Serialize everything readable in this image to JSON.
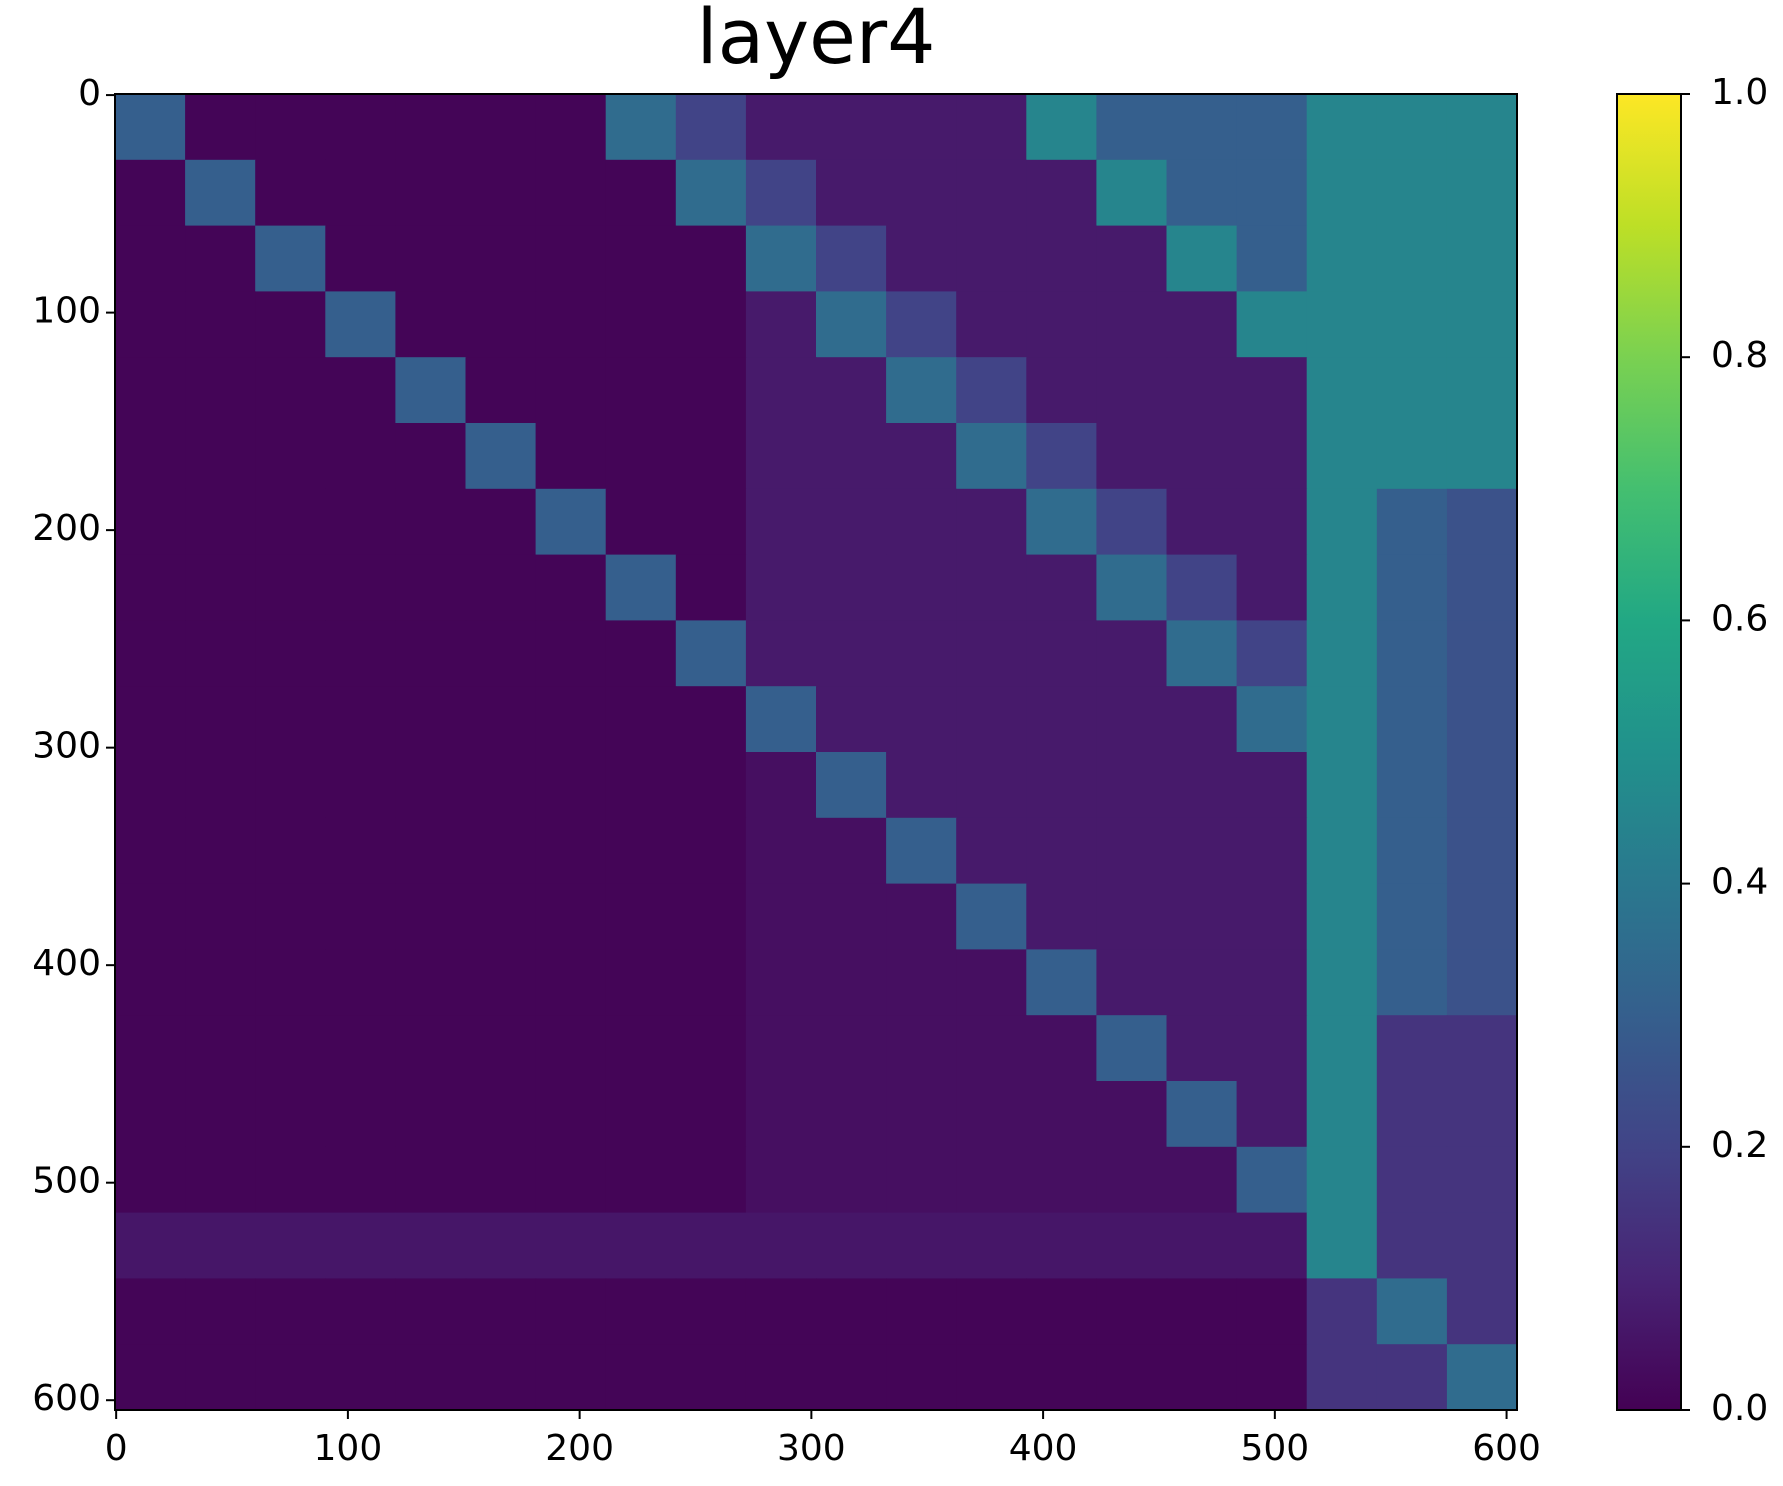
{
  "chart_data": {
    "type": "heatmap",
    "title": "layer4",
    "xlim": [
      -0.5,
      604.5
    ],
    "ylim": [
      604.5,
      -0.5
    ],
    "xticks": [
      0,
      100,
      200,
      300,
      400,
      500,
      600
    ],
    "yticks": [
      0,
      100,
      200,
      300,
      400,
      500,
      600
    ],
    "colormap": "viridis",
    "clim": [
      0,
      1
    ],
    "cticks": [
      {
        "value": 0,
        "label": "0.0"
      },
      {
        "value": 0.2,
        "label": "0.2"
      },
      {
        "value": 0.4,
        "label": "0.4"
      },
      {
        "value": 0.6,
        "label": "0.6"
      },
      {
        "value": 0.8,
        "label": "0.8"
      },
      {
        "value": 1,
        "label": "1.0"
      }
    ],
    "values": [
      [
        0.3,
        0.01,
        0.01,
        0.01,
        0.01,
        0.01,
        0.01,
        0.35,
        0.2,
        0.07,
        0.07,
        0.07,
        0.07,
        0.45,
        0.3,
        0.3,
        0.3,
        0.45,
        0.45,
        0.45
      ],
      [
        0.01,
        0.3,
        0.01,
        0.01,
        0.01,
        0.01,
        0.01,
        0.01,
        0.35,
        0.2,
        0.07,
        0.07,
        0.07,
        0.07,
        0.45,
        0.3,
        0.3,
        0.45,
        0.45,
        0.45
      ],
      [
        0.01,
        0.01,
        0.3,
        0.01,
        0.01,
        0.01,
        0.01,
        0.01,
        0.01,
        0.35,
        0.2,
        0.07,
        0.07,
        0.07,
        0.07,
        0.45,
        0.3,
        0.45,
        0.45,
        0.45
      ],
      [
        0.01,
        0.01,
        0.01,
        0.3,
        0.01,
        0.01,
        0.01,
        0.01,
        0.01,
        0.07,
        0.35,
        0.2,
        0.07,
        0.07,
        0.07,
        0.07,
        0.45,
        0.45,
        0.45,
        0.45
      ],
      [
        0.01,
        0.01,
        0.01,
        0.01,
        0.3,
        0.01,
        0.01,
        0.01,
        0.01,
        0.07,
        0.07,
        0.35,
        0.2,
        0.07,
        0.07,
        0.07,
        0.07,
        0.45,
        0.45,
        0.45
      ],
      [
        0.01,
        0.01,
        0.01,
        0.01,
        0.01,
        0.3,
        0.01,
        0.01,
        0.01,
        0.07,
        0.07,
        0.07,
        0.35,
        0.2,
        0.07,
        0.07,
        0.07,
        0.45,
        0.45,
        0.45
      ],
      [
        0.01,
        0.01,
        0.01,
        0.01,
        0.01,
        0.01,
        0.3,
        0.01,
        0.01,
        0.07,
        0.07,
        0.07,
        0.07,
        0.35,
        0.2,
        0.07,
        0.07,
        0.45,
        0.3,
        0.25
      ],
      [
        0.01,
        0.01,
        0.01,
        0.01,
        0.01,
        0.01,
        0.01,
        0.3,
        0.01,
        0.07,
        0.07,
        0.07,
        0.07,
        0.07,
        0.35,
        0.2,
        0.07,
        0.45,
        0.3,
        0.25
      ],
      [
        0.01,
        0.01,
        0.01,
        0.01,
        0.01,
        0.01,
        0.01,
        0.01,
        0.3,
        0.07,
        0.07,
        0.07,
        0.07,
        0.07,
        0.07,
        0.35,
        0.2,
        0.45,
        0.3,
        0.25
      ],
      [
        0.01,
        0.01,
        0.01,
        0.01,
        0.01,
        0.01,
        0.01,
        0.01,
        0.01,
        0.3,
        0.07,
        0.07,
        0.07,
        0.07,
        0.07,
        0.07,
        0.35,
        0.45,
        0.3,
        0.25
      ],
      [
        0.01,
        0.01,
        0.01,
        0.01,
        0.01,
        0.01,
        0.01,
        0.01,
        0.01,
        0.04,
        0.3,
        0.07,
        0.07,
        0.07,
        0.07,
        0.07,
        0.07,
        0.45,
        0.3,
        0.25
      ],
      [
        0.01,
        0.01,
        0.01,
        0.01,
        0.01,
        0.01,
        0.01,
        0.01,
        0.01,
        0.04,
        0.04,
        0.3,
        0.07,
        0.07,
        0.07,
        0.07,
        0.07,
        0.45,
        0.3,
        0.25
      ],
      [
        0.01,
        0.01,
        0.01,
        0.01,
        0.01,
        0.01,
        0.01,
        0.01,
        0.01,
        0.04,
        0.04,
        0.04,
        0.3,
        0.07,
        0.07,
        0.07,
        0.07,
        0.45,
        0.3,
        0.25
      ],
      [
        0.01,
        0.01,
        0.01,
        0.01,
        0.01,
        0.01,
        0.01,
        0.01,
        0.01,
        0.04,
        0.04,
        0.04,
        0.04,
        0.3,
        0.07,
        0.07,
        0.07,
        0.45,
        0.3,
        0.25
      ],
      [
        0.01,
        0.01,
        0.01,
        0.01,
        0.01,
        0.01,
        0.01,
        0.01,
        0.01,
        0.04,
        0.04,
        0.04,
        0.04,
        0.04,
        0.3,
        0.07,
        0.07,
        0.45,
        0.15,
        0.15
      ],
      [
        0.01,
        0.01,
        0.01,
        0.01,
        0.01,
        0.01,
        0.01,
        0.01,
        0.01,
        0.04,
        0.04,
        0.04,
        0.04,
        0.04,
        0.04,
        0.3,
        0.07,
        0.45,
        0.15,
        0.15
      ],
      [
        0.01,
        0.01,
        0.01,
        0.01,
        0.01,
        0.01,
        0.01,
        0.01,
        0.01,
        0.04,
        0.04,
        0.04,
        0.04,
        0.04,
        0.04,
        0.04,
        0.3,
        0.45,
        0.15,
        0.15
      ],
      [
        0.06,
        0.06,
        0.06,
        0.06,
        0.06,
        0.06,
        0.06,
        0.06,
        0.06,
        0.06,
        0.06,
        0.06,
        0.06,
        0.06,
        0.06,
        0.06,
        0.06,
        0.45,
        0.15,
        0.15
      ],
      [
        0.01,
        0.01,
        0.01,
        0.01,
        0.01,
        0.01,
        0.01,
        0.01,
        0.01,
        0.01,
        0.01,
        0.01,
        0.01,
        0.01,
        0.01,
        0.01,
        0.01,
        0.15,
        0.35,
        0.15
      ],
      [
        0.01,
        0.01,
        0.01,
        0.01,
        0.01,
        0.01,
        0.01,
        0.01,
        0.01,
        0.01,
        0.01,
        0.01,
        0.01,
        0.01,
        0.01,
        0.01,
        0.01,
        0.15,
        0.15,
        0.35
      ]
    ]
  }
}
